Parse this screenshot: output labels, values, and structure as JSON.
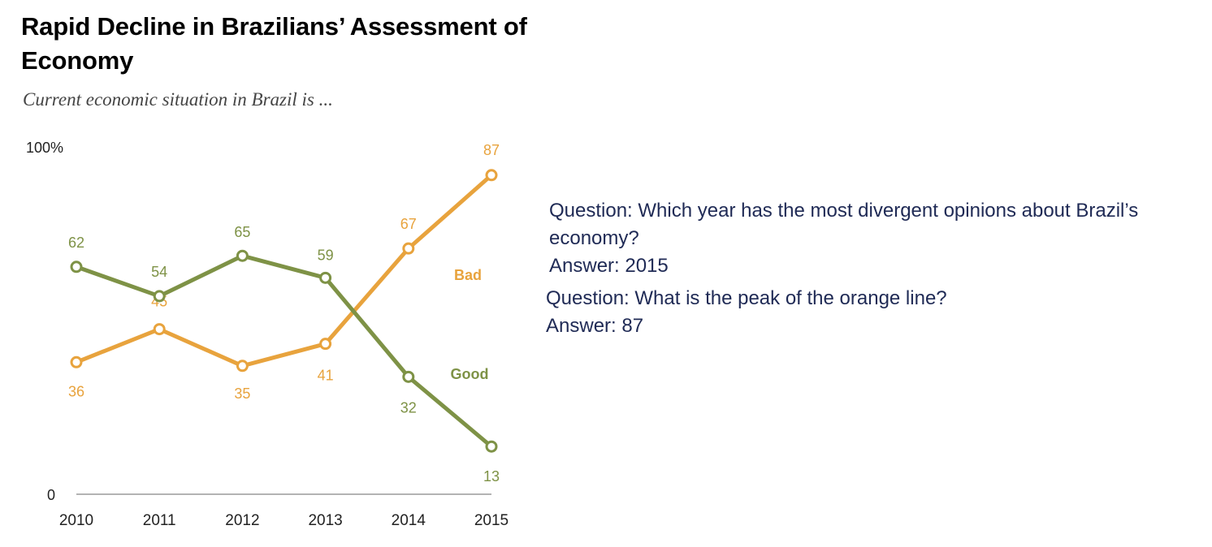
{
  "title": "Rapid Decline in Brazilians’ Assessment of Economy",
  "subtitle": "Current economic situation in Brazil is ...",
  "chart_data": {
    "type": "line",
    "x": [
      "2010",
      "2011",
      "2012",
      "2013",
      "2014",
      "2015"
    ],
    "ylim": [
      0,
      100
    ],
    "y_tick_labels": [
      "0",
      "100%"
    ],
    "grid": false,
    "series": [
      {
        "name": "Bad",
        "values": [
          36,
          45,
          35,
          41,
          67,
          87
        ],
        "color": "#e8a33d"
      },
      {
        "name": "Good",
        "values": [
          62,
          54,
          65,
          59,
          32,
          13
        ],
        "color": "#7e9246"
      }
    ]
  },
  "qa": {
    "question1": "Question: Which year has the most divergent opinions about Brazil’s economy?",
    "answer1": "Answer: 2015",
    "question2": "Question: What is the peak of the orange line?",
    "answer2": "Answer: 87"
  }
}
